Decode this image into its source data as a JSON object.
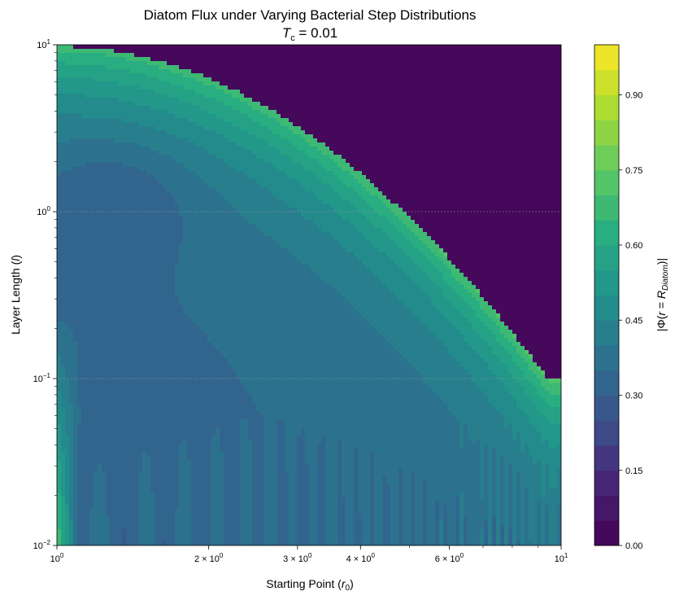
{
  "chart_data": {
    "type": "heatmap",
    "title": "Diatom Flux under Varying Bacterial Step Distributions",
    "subtitle": "T_c = 0.01",
    "subtitle_parts": {
      "symbol": "T",
      "subscript": "c",
      "rest": " = 0.01"
    },
    "xlabel": "Starting Point (r₀)",
    "ylabel": "Layer Length (l)",
    "x_scale": "log",
    "y_scale": "log",
    "xlim": [
      1,
      10
    ],
    "ylim": [
      0.01,
      10
    ],
    "x_ticks": [
      {
        "value": 1,
        "base": "10",
        "exp": "0"
      },
      {
        "value": 2,
        "base": "2 × 10",
        "exp": "0"
      },
      {
        "value": 3,
        "base": "3 × 10",
        "exp": "0"
      },
      {
        "value": 4,
        "base": "4 × 10",
        "exp": "0"
      },
      {
        "value": 6,
        "base": "6 × 10",
        "exp": "0"
      },
      {
        "value": 10,
        "base": "10",
        "exp": "1"
      }
    ],
    "y_ticks": [
      {
        "value": 0.01,
        "base": "10",
        "exp": "−2"
      },
      {
        "value": 0.1,
        "base": "10",
        "exp": "−1"
      },
      {
        "value": 1,
        "base": "10",
        "exp": "0"
      },
      {
        "value": 10,
        "base": "10",
        "exp": "1"
      }
    ],
    "colorbar": {
      "label_parts": {
        "pre": "|Φ(",
        "r": "r",
        "eq": " = ",
        "R": "R",
        "sub": "Diatom",
        "post": ")|"
      },
      "range": [
        0,
        1
      ],
      "levels": 20,
      "ticks": [
        "0.00",
        "0.15",
        "0.30",
        "0.45",
        "0.60",
        "0.75",
        "0.90"
      ],
      "tick_values": [
        0,
        0.15,
        0.3,
        0.45,
        0.6,
        0.75,
        0.9
      ],
      "colormap": "viridis"
    },
    "grid": {
      "horizontal_dashed_at": [
        0.1,
        1
      ]
    },
    "colors": {
      "background_region": "#440154",
      "low_region": "#3b528b",
      "mid_region": "#21918c",
      "high_region": "#5ec962"
    }
  }
}
